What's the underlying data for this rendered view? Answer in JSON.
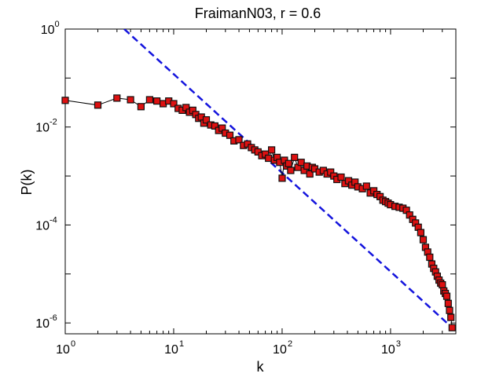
{
  "chart_data": {
    "type": "scatter",
    "title": "FraimanN03, r = 0.6",
    "xlabel": "k",
    "ylabel": "P(k)",
    "xscale": "log",
    "yscale": "log",
    "xlim": [
      1,
      4000
    ],
    "ylim": [
      6e-07,
      1
    ],
    "x_ticks": [
      {
        "value": 1,
        "base": "10",
        "exp": "0"
      },
      {
        "value": 10,
        "base": "10",
        "exp": "1"
      },
      {
        "value": 100,
        "base": "10",
        "exp": "2"
      },
      {
        "value": 1000,
        "base": "10",
        "exp": "3"
      }
    ],
    "y_ticks": [
      {
        "value": 1,
        "base": "10",
        "exp": "0"
      },
      {
        "value": 0.01,
        "base": "10",
        "exp": "-2"
      },
      {
        "value": 0.0001,
        "base": "10",
        "exp": "-4"
      },
      {
        "value": 1e-06,
        "base": "10",
        "exp": "-6"
      }
    ],
    "grid": false,
    "colors": {
      "marker_fill": "#dd1111",
      "marker_edge": "#111111",
      "line": "#000000",
      "fit_line": "#1414dd"
    },
    "series": [
      {
        "style": "markers-with-line",
        "points": [
          [
            1,
            0.035
          ],
          [
            2,
            0.028
          ],
          [
            3,
            0.039
          ],
          [
            4,
            0.036
          ],
          [
            5,
            0.026
          ],
          [
            6,
            0.036
          ],
          [
            7,
            0.034
          ],
          [
            8,
            0.03
          ],
          [
            9,
            0.034
          ],
          [
            10,
            0.03
          ],
          [
            11,
            0.024
          ],
          [
            12,
            0.022
          ],
          [
            13,
            0.025
          ],
          [
            14,
            0.02
          ],
          [
            15,
            0.022
          ],
          [
            16,
            0.018
          ],
          [
            17,
            0.015
          ],
          [
            18,
            0.016
          ],
          [
            19,
            0.012
          ],
          [
            20,
            0.014
          ],
          [
            22,
            0.011
          ],
          [
            24,
            0.0105
          ],
          [
            26,
            0.0085
          ],
          [
            28,
            0.0095
          ],
          [
            30,
            0.0075
          ],
          [
            33,
            0.0068
          ],
          [
            36,
            0.0052
          ],
          [
            40,
            0.0055
          ],
          [
            44,
            0.0042
          ],
          [
            48,
            0.0045
          ],
          [
            52,
            0.0038
          ],
          [
            56,
            0.0034
          ],
          [
            60,
            0.0031
          ],
          [
            65,
            0.0026
          ],
          [
            70,
            0.0028
          ],
          [
            75,
            0.0023
          ],
          [
            80,
            0.0034
          ],
          [
            85,
            0.0021
          ],
          [
            90,
            0.0024
          ],
          [
            95,
            0.0019
          ],
          [
            100,
            0.0009
          ],
          [
            105,
            0.0021
          ],
          [
            110,
            0.0016
          ],
          [
            115,
            0.0018
          ],
          [
            120,
            0.0013
          ],
          [
            130,
            0.0024
          ],
          [
            140,
            0.0015
          ],
          [
            150,
            0.0019
          ],
          [
            160,
            0.0013
          ],
          [
            170,
            0.0016
          ],
          [
            180,
            0.0011
          ],
          [
            190,
            0.0015
          ],
          [
            200,
            0.0014
          ],
          [
            220,
            0.0012
          ],
          [
            240,
            0.0013
          ],
          [
            260,
            0.0011
          ],
          [
            280,
            0.0012
          ],
          [
            300,
            0.001
          ],
          [
            320,
            0.00085
          ],
          [
            350,
            0.00095
          ],
          [
            380,
            0.0007
          ],
          [
            410,
            0.0008
          ],
          [
            440,
            0.00065
          ],
          [
            470,
            0.00075
          ],
          [
            500,
            0.0006
          ],
          [
            550,
            0.00055
          ],
          [
            600,
            0.00062
          ],
          [
            650,
            0.00045
          ],
          [
            700,
            0.0005
          ],
          [
            750,
            0.00042
          ],
          [
            800,
            0.00038
          ],
          [
            850,
            0.00032
          ],
          [
            900,
            0.0003
          ],
          [
            950,
            0.00028
          ],
          [
            1000,
            0.00026
          ],
          [
            1100,
            0.00024
          ],
          [
            1200,
            0.00023
          ],
          [
            1300,
            0.00022
          ],
          [
            1400,
            0.0002
          ],
          [
            1500,
            0.00016
          ],
          [
            1600,
            0.00013
          ],
          [
            1700,
            0.00011
          ],
          [
            1800,
            9e-05
          ],
          [
            1900,
            7e-05
          ],
          [
            2000,
            5e-05
          ],
          [
            2100,
            3.5e-05
          ],
          [
            2200,
            2.8e-05
          ],
          [
            2300,
            2.2e-05
          ],
          [
            2400,
            1.6e-05
          ],
          [
            2500,
            1.3e-05
          ],
          [
            2600,
            1.1e-05
          ],
          [
            2700,
            9e-06
          ],
          [
            2800,
            7.5e-06
          ],
          [
            2900,
            6.5e-06
          ],
          [
            3000,
            6e-06
          ],
          [
            3100,
            4.5e-06
          ],
          [
            3200,
            4e-06
          ],
          [
            3300,
            3.5e-06
          ],
          [
            3400,
            2.5e-06
          ],
          [
            3500,
            1.8e-06
          ],
          [
            3600,
            1.3e-06
          ],
          [
            3700,
            8e-07
          ]
        ]
      },
      {
        "style": "dashed-line",
        "points": [
          [
            3.5,
            1.0
          ],
          [
            3700,
            8e-07
          ]
        ]
      }
    ]
  }
}
